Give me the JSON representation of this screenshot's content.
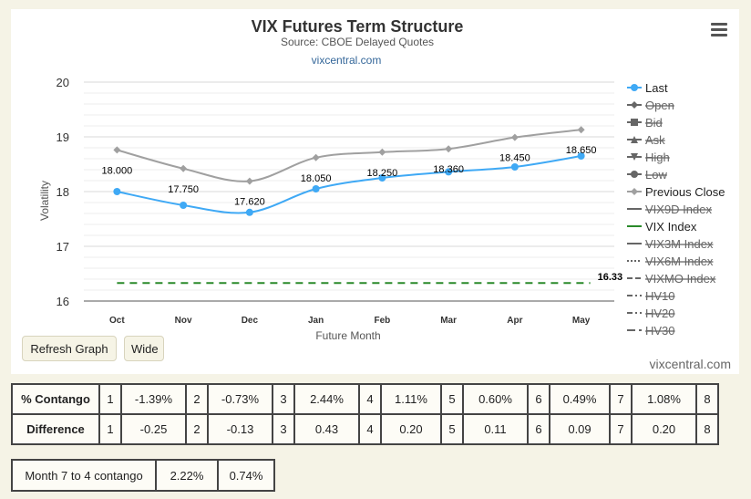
{
  "chart_data": {
    "type": "line",
    "title": "VIX Futures Term Structure",
    "subtitle": "Source: CBOE Delayed Quotes",
    "credit_link": "vixcentral.com",
    "xlabel": "Future Month",
    "ylabel": "Volatility",
    "categories": [
      "Oct",
      "Nov",
      "Dec",
      "Jan",
      "Feb",
      "Mar",
      "Apr",
      "May"
    ],
    "ylim": [
      16,
      20
    ],
    "yticks": [
      "16",
      "17",
      "18",
      "19",
      "20"
    ],
    "grid": true,
    "legend_position": "right",
    "series": [
      {
        "name": "Last",
        "color": "#3fa9f5",
        "values": [
          18.0,
          17.75,
          17.62,
          18.05,
          18.25,
          18.36,
          18.45,
          18.65
        ],
        "labels": [
          "18.000",
          "17.750",
          "17.620",
          "18.050",
          "18.250",
          "18.360",
          "18.450",
          "18.650"
        ]
      },
      {
        "name": "Previous Close",
        "color": "#a0a0a0",
        "values": [
          18.76,
          18.42,
          18.19,
          18.62,
          18.72,
          18.78,
          18.99,
          19.13
        ]
      },
      {
        "name": "VIX Index",
        "color": "#2a8a2a",
        "values": [
          16.33,
          16.33,
          16.33,
          16.33,
          16.33,
          16.33,
          16.33,
          16.33
        ],
        "end_label": "16.33"
      }
    ]
  },
  "legend": [
    {
      "name": "Last",
      "symbol": "circle",
      "color": "#3fa9f5",
      "hidden": false
    },
    {
      "name": "Open",
      "symbol": "diamond",
      "color": "#666666",
      "hidden": true
    },
    {
      "name": "Bid",
      "symbol": "square",
      "color": "#666666",
      "hidden": true
    },
    {
      "name": "Ask",
      "symbol": "triangle-up",
      "color": "#666666",
      "hidden": true
    },
    {
      "name": "High",
      "symbol": "triangle-down",
      "color": "#666666",
      "hidden": true
    },
    {
      "name": "Low",
      "symbol": "circle",
      "color": "#666666",
      "hidden": true
    },
    {
      "name": "Previous Close",
      "symbol": "diamond",
      "color": "#a0a0a0",
      "hidden": false
    },
    {
      "name": "VIX9D Index",
      "symbol": "solid",
      "color": "#666666",
      "hidden": true
    },
    {
      "name": "VIX Index",
      "symbol": "solid",
      "color": "#2a8a2a",
      "hidden": false
    },
    {
      "name": "VIX3M Index",
      "symbol": "solid",
      "color": "#666666",
      "hidden": true
    },
    {
      "name": "VIX6M Index",
      "symbol": "dotted",
      "color": "#666666",
      "hidden": true
    },
    {
      "name": "VIXMO Index",
      "symbol": "dashed",
      "color": "#666666",
      "hidden": true
    },
    {
      "name": "HV10",
      "symbol": "dashdot",
      "color": "#666666",
      "hidden": true
    },
    {
      "name": "HV20",
      "symbol": "dashdot",
      "color": "#666666",
      "hidden": true
    },
    {
      "name": "HV30",
      "symbol": "longdash",
      "color": "#666666",
      "hidden": true
    }
  ],
  "icons": {
    "menu": "hamburger-menu-icon"
  },
  "buttons": {
    "refresh": "Refresh Graph",
    "wide": "Wide"
  },
  "watermark": "vixcentral.com",
  "contango_table": {
    "rows": [
      {
        "label": "% Contango",
        "cells": [
          "1",
          "-1.39%",
          "2",
          "-0.73%",
          "3",
          "2.44%",
          "4",
          "1.11%",
          "5",
          "0.60%",
          "6",
          "0.49%",
          "7",
          "1.08%",
          "8"
        ]
      },
      {
        "label": "Difference",
        "cells": [
          "1",
          "-0.25",
          "2",
          "-0.13",
          "3",
          "0.43",
          "4",
          "0.20",
          "5",
          "0.11",
          "6",
          "0.09",
          "7",
          "0.20",
          "8"
        ]
      }
    ]
  },
  "month_table": {
    "label": "Month 7 to 4 contango",
    "value1": "2.22%",
    "value2": "0.74%"
  }
}
